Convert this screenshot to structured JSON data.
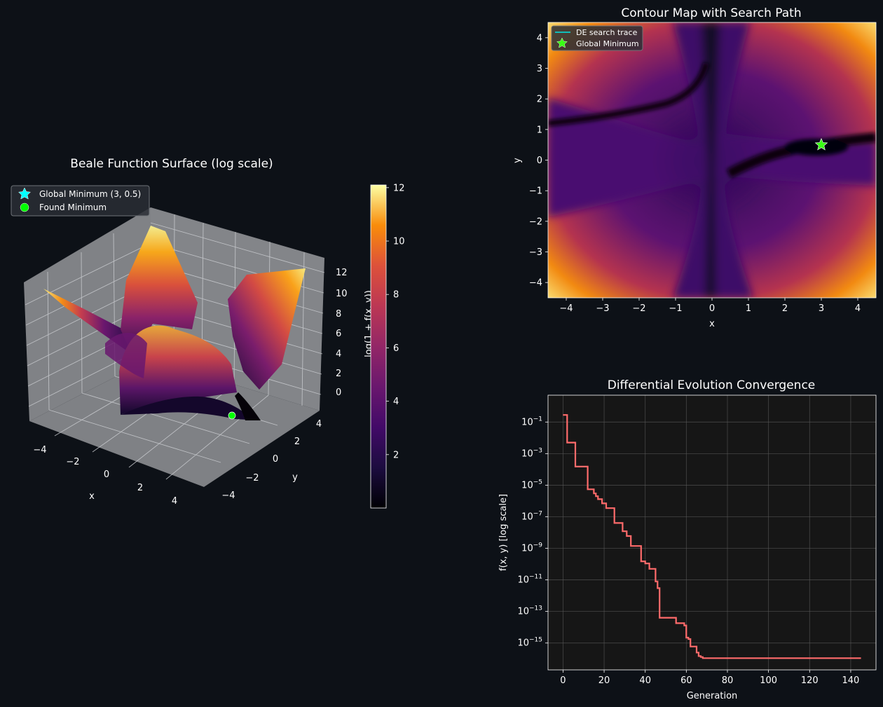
{
  "figure": {
    "background": "#0d1117",
    "text_color": "#ffffff"
  },
  "chart_data": [
    {
      "id": "surface3d",
      "type": "surface3d",
      "title": "Beale Function Surface (log scale)",
      "xlabel": "x",
      "ylabel": "y",
      "zlabel": "log(1 + f(x, y))",
      "xlim": [
        -4.5,
        4.5
      ],
      "ylim": [
        -4.5,
        4.5
      ],
      "zlim": [
        0,
        12
      ],
      "xticks": [
        -4,
        -2,
        0,
        2,
        4
      ],
      "yticks": [
        -4,
        -2,
        0,
        2,
        4
      ],
      "zticks": [
        0,
        2,
        4,
        6,
        8,
        10,
        12
      ],
      "colormap": "inferno",
      "colorbar": {
        "label": "log(1 + f(x, y))",
        "range": [
          0.0,
          12.1
        ],
        "ticks": [
          2,
          4,
          6,
          8,
          10,
          12
        ]
      },
      "legend": {
        "position": "top-left",
        "entries": [
          {
            "label": "Global Minimum (3, 0.5)",
            "marker": "star",
            "color": "#00ffff"
          },
          {
            "label": "Found Minimum",
            "marker": "circle",
            "color": "#00ff00"
          }
        ]
      },
      "points": [
        {
          "name": "Found Minimum",
          "x": 3.0,
          "y": 0.5,
          "z": 0.0,
          "color": "#00ff00"
        }
      ]
    },
    {
      "id": "contour",
      "type": "contour",
      "title": "Contour Map with Search Path",
      "xlabel": "x",
      "ylabel": "y",
      "xlim": [
        -4.5,
        4.5
      ],
      "ylim": [
        -4.5,
        4.5
      ],
      "xticks": [
        -4,
        -3,
        -2,
        -1,
        0,
        1,
        2,
        3,
        4
      ],
      "yticks": [
        -4,
        -3,
        -2,
        -1,
        0,
        1,
        2,
        3,
        4
      ],
      "colormap": "inferno",
      "legend": {
        "position": "top-left",
        "entries": [
          {
            "label": "DE search trace",
            "marker": "line",
            "color": "#00e5e5"
          },
          {
            "label": "Global Minimum",
            "marker": "star",
            "color": "#39ff14"
          }
        ]
      },
      "points": [
        {
          "name": "Global Minimum",
          "x": 3.0,
          "y": 0.5
        }
      ]
    },
    {
      "id": "convergence",
      "type": "line",
      "title": "Differential Evolution Convergence",
      "xlabel": "Generation",
      "ylabel": "f(x, y)  [log scale]",
      "xlim": [
        -7.3,
        152.3
      ],
      "ylim_log10": [
        -16.7,
        0.7
      ],
      "xticks": [
        0,
        20,
        40,
        60,
        80,
        100,
        120,
        140
      ],
      "yticks_exp": [
        -1,
        -3,
        -5,
        -7,
        -9,
        -11,
        -13,
        -15
      ],
      "grid": true,
      "line_color": "#ff6b6b",
      "series": [
        {
          "steps": [
            [
              0,
              0.28
            ],
            [
              2,
              0.005
            ],
            [
              6,
              0.00015
            ],
            [
              12,
              5.5e-06
            ],
            [
              15,
              3e-06
            ],
            [
              16,
              2e-06
            ],
            [
              17,
              1.3e-06
            ],
            [
              19,
              7e-07
            ],
            [
              21,
              3.5e-07
            ],
            [
              25,
              4e-08
            ],
            [
              29,
              1.2e-08
            ],
            [
              31,
              6e-09
            ],
            [
              33,
              1.4e-09
            ],
            [
              38,
              1.5e-10
            ],
            [
              40,
              1.1e-10
            ],
            [
              42,
              5e-11
            ],
            [
              45,
              8e-12
            ],
            [
              46,
              3e-12
            ],
            [
              47,
              4e-14
            ],
            [
              55,
              1.8e-14
            ],
            [
              59,
              1.3e-14
            ],
            [
              60,
              2.2e-15
            ],
            [
              61,
              1.8e-15
            ],
            [
              62,
              6e-16
            ],
            [
              65,
              2.5e-16
            ],
            [
              66,
              1.5e-16
            ],
            [
              67,
              1.3e-16
            ],
            [
              68,
              1.1e-16
            ],
            [
              145,
              1.1e-16
            ]
          ]
        }
      ]
    }
  ]
}
